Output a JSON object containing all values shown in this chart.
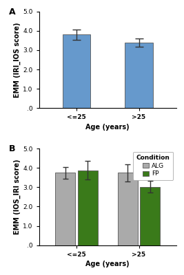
{
  "panel_A": {
    "categories": [
      "<=25",
      ">25"
    ],
    "values": [
      3.8,
      3.38
    ],
    "errors": [
      0.25,
      0.22
    ],
    "bar_color": "#6699CC",
    "ylabel": "EMM (IRI_IOS score)",
    "xlabel": "Age (years)",
    "ylim": [
      0,
      5.0
    ],
    "yticks": [
      0.0,
      1.0,
      2.0,
      3.0,
      4.0,
      5.0
    ],
    "ytick_labels": [
      ".0",
      "1.0",
      "2.0",
      "3.0",
      "4.0",
      "5.0"
    ],
    "panel_label": "A"
  },
  "panel_B": {
    "categories": [
      "<=25",
      ">25"
    ],
    "conditions": [
      "ALG",
      "FP"
    ],
    "values": [
      [
        3.75,
        3.88
      ],
      [
        3.75,
        3.02
      ]
    ],
    "errors": [
      [
        0.3,
        0.48
      ],
      [
        0.45,
        0.3
      ]
    ],
    "bar_colors": [
      "#aaaaaa",
      "#3a7a1a"
    ],
    "ylabel": "EMM (IOS_IRI score)",
    "xlabel": "Age (years)",
    "ylim": [
      0,
      5.0
    ],
    "yticks": [
      0.0,
      1.0,
      2.0,
      3.0,
      4.0,
      5.0
    ],
    "ytick_labels": [
      ".0",
      "1.0",
      "2.0",
      "3.0",
      "4.0",
      "5.0"
    ],
    "legend_title": "Condition",
    "panel_label": "B"
  },
  "background_color": "#ffffff",
  "tick_fontsize": 6.5,
  "label_fontsize": 7.0
}
